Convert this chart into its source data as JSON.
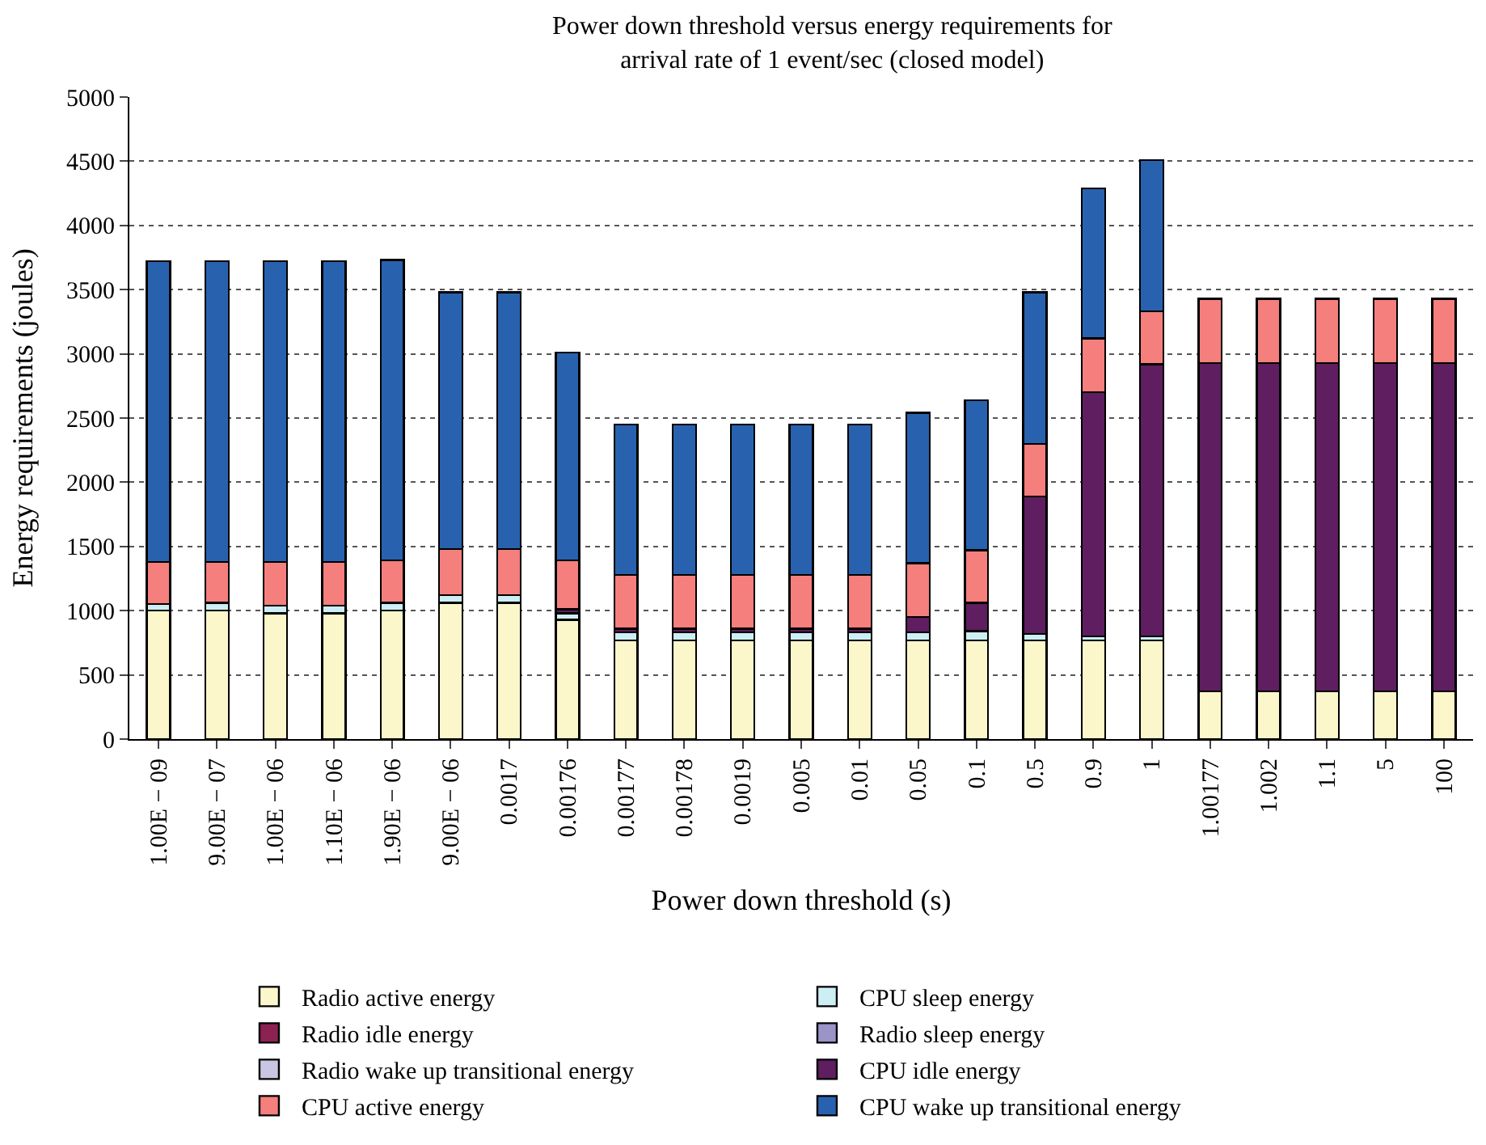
{
  "chart_data": {
    "type": "bar",
    "stacked": true,
    "title": "Power down threshold versus energy requirements for\narrival rate of 1 event/sec (closed model)",
    "xlabel": "Power down threshold (s)",
    "ylabel": "Energy requirements (joules)",
    "categories": [
      "1.00E − 09",
      "9.00E − 07",
      "1.00E − 06",
      "1.10E − 06",
      "1.90E − 06",
      "9.00E − 06",
      "0.0017",
      "0.00176",
      "0.00177",
      "0.00178",
      "0.0019",
      "0.005",
      "0.01",
      "0.05",
      "0.1",
      "0.5",
      "0.9",
      "1",
      "1.00177",
      "1.002",
      "1.1",
      "5",
      "100"
    ],
    "series": [
      {
        "name": "Radio active energy",
        "color": "#fbf7cb",
        "values": [
          1000,
          1000,
          980,
          980,
          1000,
          1060,
          1060,
          930,
          770,
          770,
          770,
          770,
          770,
          770,
          770,
          770,
          770,
          770,
          370,
          370,
          370,
          370,
          370
        ]
      },
      {
        "name": "CPU sleep energy",
        "color": "#cdeef3",
        "values": [
          50,
          60,
          60,
          60,
          60,
          60,
          60,
          50,
          60,
          60,
          60,
          60,
          60,
          60,
          70,
          50,
          30,
          30,
          null,
          null,
          null,
          null,
          null
        ]
      },
      {
        "name": "Radio idle energy",
        "color": "#8b2252",
        "values": [
          null,
          null,
          null,
          null,
          null,
          null,
          null,
          null,
          null,
          null,
          null,
          null,
          null,
          null,
          null,
          null,
          null,
          null,
          null,
          null,
          null,
          null,
          null
        ]
      },
      {
        "name": "Radio sleep energy",
        "color": "#9a94c8",
        "values": [
          null,
          null,
          null,
          null,
          null,
          null,
          null,
          null,
          null,
          null,
          null,
          null,
          null,
          null,
          null,
          null,
          null,
          null,
          null,
          null,
          null,
          null,
          null
        ]
      },
      {
        "name": "Radio wake up transitional energy",
        "color": "#c8c6e0",
        "values": [
          null,
          null,
          null,
          null,
          null,
          null,
          null,
          null,
          null,
          null,
          null,
          null,
          null,
          null,
          null,
          null,
          null,
          null,
          null,
          null,
          null,
          null,
          null
        ]
      },
      {
        "name": "CPU idle energy",
        "color": "#5f1e5f",
        "values": [
          null,
          null,
          null,
          null,
          null,
          null,
          null,
          30,
          30,
          30,
          30,
          30,
          30,
          120,
          220,
          1070,
          1900,
          2120,
          2560,
          2560,
          2560,
          2560,
          2560
        ]
      },
      {
        "name": "CPU active energy",
        "color": "#f47f7d",
        "values": [
          330,
          320,
          340,
          340,
          330,
          360,
          360,
          380,
          420,
          420,
          420,
          420,
          420,
          420,
          410,
          410,
          420,
          410,
          500,
          500,
          500,
          500,
          500
        ]
      },
      {
        "name": "CPU wake up transitional energy",
        "color": "#2862ae",
        "values": [
          2340,
          2340,
          2340,
          2340,
          2340,
          2000,
          2000,
          1620,
          1170,
          1170,
          1170,
          1170,
          1170,
          1170,
          1170,
          1180,
          1170,
          1180,
          null,
          null,
          null,
          null,
          null
        ]
      }
    ],
    "ylim": [
      0,
      5000
    ],
    "yticks": [
      0,
      500,
      1000,
      1500,
      2000,
      2500,
      3000,
      3500,
      4000,
      4500,
      5000
    ],
    "grid": "y",
    "legend": "bottom"
  }
}
